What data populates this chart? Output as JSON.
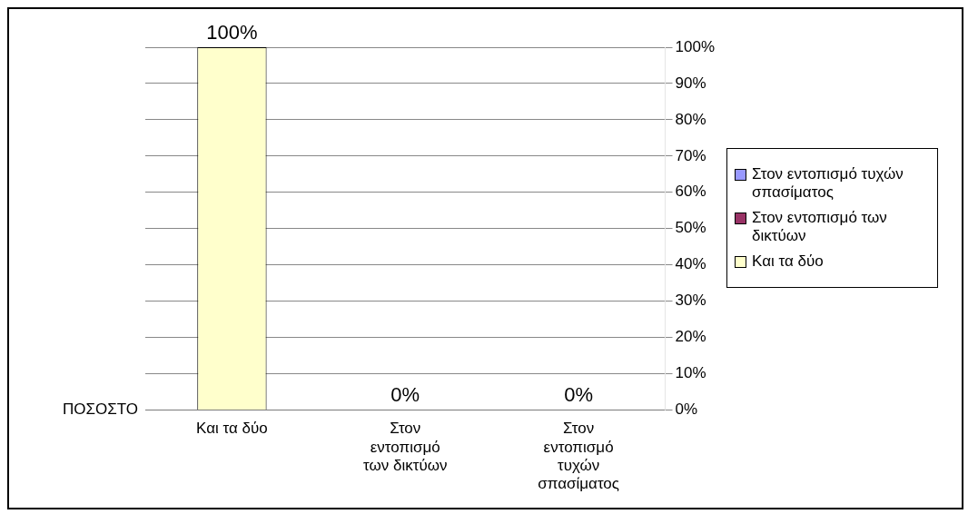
{
  "chart_data": {
    "type": "bar",
    "ylabel": "ΠΟΣΟΣΤΟ",
    "categories": [
      "Και τα δύο",
      "Στον εντοπισμό των δικτύων",
      "Στον εντοπισμό τυχών σπασίματος"
    ],
    "series": [
      {
        "name": "Στον εντοπισμό τυχών σπασίματος",
        "color": "#9999ff",
        "values": [
          null,
          null,
          0
        ],
        "value_labels": [
          null,
          null,
          "0%"
        ]
      },
      {
        "name": "Στον εντοπισμό των δικτύων",
        "color": "#993366",
        "values": [
          null,
          0,
          null
        ],
        "value_labels": [
          null,
          "0%",
          null
        ]
      },
      {
        "name": "Και τα δύο",
        "color": "#ffffcc",
        "values": [
          100,
          null,
          null
        ],
        "value_labels": [
          "100%",
          null,
          null
        ]
      }
    ],
    "ylim": [
      0,
      100
    ],
    "yticks": [
      {
        "value": 0,
        "label": "0%"
      },
      {
        "value": 10,
        "label": "10%"
      },
      {
        "value": 20,
        "label": "20%"
      },
      {
        "value": 30,
        "label": "30%"
      },
      {
        "value": 40,
        "label": "40%"
      },
      {
        "value": 50,
        "label": "50%"
      },
      {
        "value": 60,
        "label": "60%"
      },
      {
        "value": 70,
        "label": "70%"
      },
      {
        "value": 80,
        "label": "80%"
      },
      {
        "value": 90,
        "label": "90%"
      },
      {
        "value": 100,
        "label": "100%"
      }
    ],
    "grid": "y",
    "legend": "right"
  }
}
